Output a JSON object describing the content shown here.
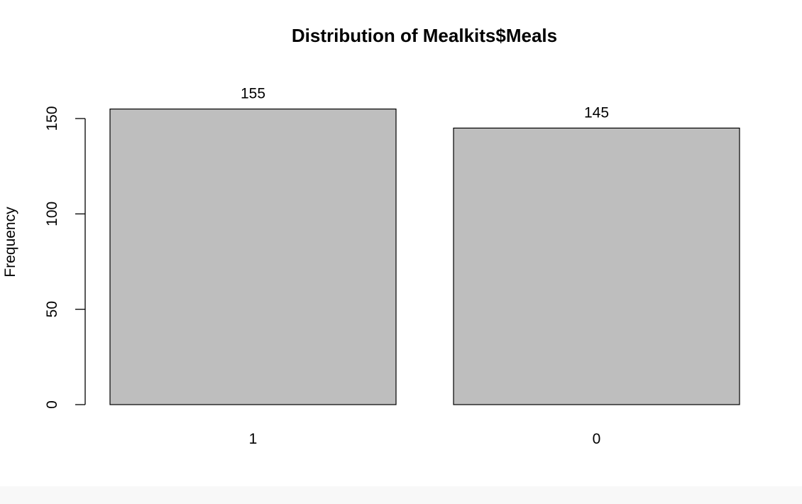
{
  "chart_data": {
    "type": "bar",
    "title": "Distribution of Mealkits$Meals",
    "xlabel": "",
    "ylabel": "Frequency",
    "categories": [
      "1",
      "0"
    ],
    "values": [
      155,
      145
    ],
    "data_labels": [
      "155",
      "145"
    ],
    "ylim": [
      0,
      150
    ],
    "yticks": [
      0,
      50,
      100,
      150
    ],
    "ytick_labels": [
      "0",
      "50",
      "100",
      "150"
    ],
    "grid": false,
    "legend": "none",
    "colors": {
      "bar_fill": "#bebebe",
      "bar_stroke": "#000000"
    }
  }
}
